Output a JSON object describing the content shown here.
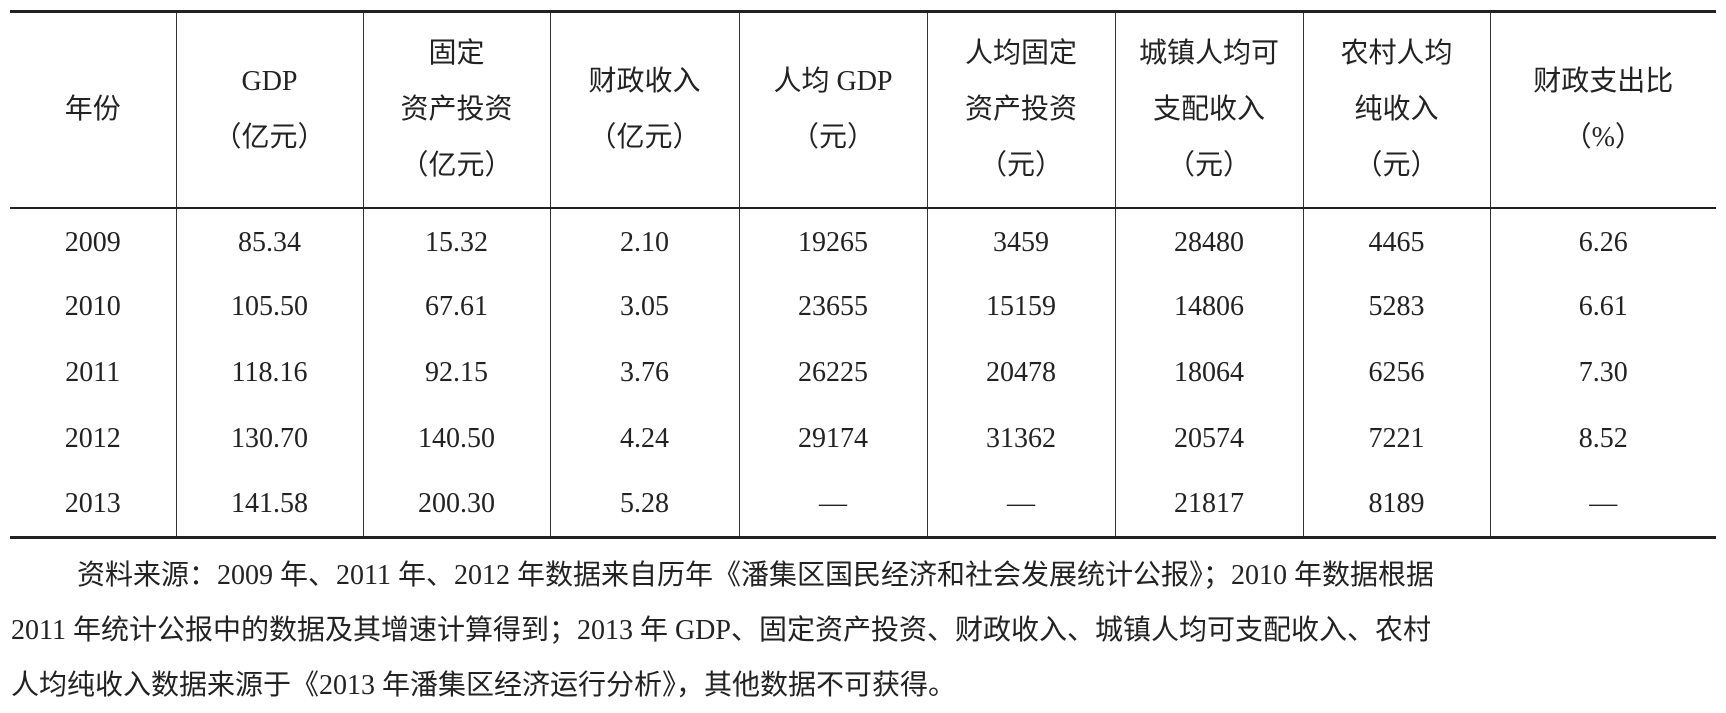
{
  "table": {
    "header": [
      [
        "年份"
      ],
      [
        "GDP",
        "（亿元）"
      ],
      [
        "固定",
        "资产投资",
        "（亿元）"
      ],
      [
        "财政收入",
        "（亿元）"
      ],
      [
        "人均 GDP",
        "（元）"
      ],
      [
        "人均固定",
        "资产投资",
        "（元）"
      ],
      [
        "城镇人均可",
        "支配收入",
        "（元）"
      ],
      [
        "农村人均",
        "纯收入",
        "（元）"
      ],
      [
        "财政支出比",
        "（%）"
      ]
    ],
    "rows": [
      [
        "2009",
        "85.34",
        "15.32",
        "2.10",
        "19265",
        "3459",
        "28480",
        "4465",
        "6.26"
      ],
      [
        "2010",
        "105.50",
        "67.61",
        "3.05",
        "23655",
        "15159",
        "14806",
        "5283",
        "6.61"
      ],
      [
        "2011",
        "118.16",
        "92.15",
        "3.76",
        "26225",
        "20478",
        "18064",
        "6256",
        "7.30"
      ],
      [
        "2012",
        "130.70",
        "140.50",
        "4.24",
        "29174",
        "31362",
        "20574",
        "7221",
        "8.52"
      ],
      [
        "2013",
        "141.58",
        "200.30",
        "5.28",
        "—",
        "—",
        "21817",
        "8189",
        "—"
      ]
    ]
  },
  "note": [
    "资料来源：2009 年、2011 年、2012 年数据来自历年《潘集区国民经济和社会发展统计公报》；2010 年数据根据",
    "2011 年统计公报中的数据及其增速计算得到；2013 年 GDP、固定资产投资、财政收入、城镇人均可支配收入、农村",
    "人均纯收入数据来源于《2013 年潘集区经济运行分析》，其他数据不可获得。"
  ]
}
